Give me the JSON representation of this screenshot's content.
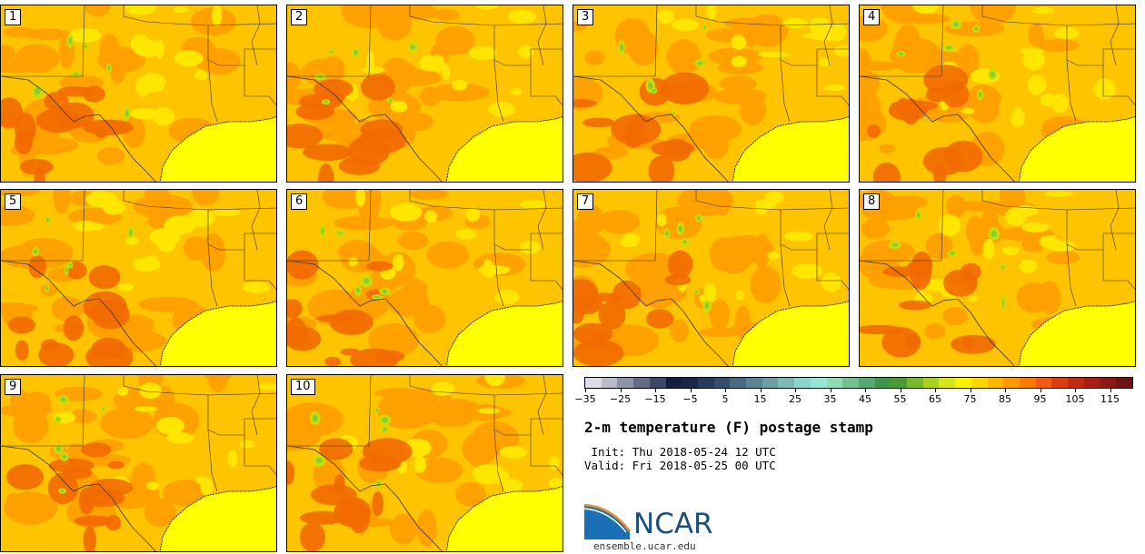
{
  "panels": [
    {
      "label": "1"
    },
    {
      "label": "2"
    },
    {
      "label": "3"
    },
    {
      "label": "4"
    },
    {
      "label": "5"
    },
    {
      "label": "6"
    },
    {
      "label": "7"
    },
    {
      "label": "8"
    },
    {
      "label": "9"
    },
    {
      "label": "10"
    }
  ],
  "colorbar": {
    "colors": [
      "#dcdde6",
      "#b9bbc9",
      "#8f93a7",
      "#666b86",
      "#3d4768",
      "#141c40",
      "#1a2647",
      "#263a5c",
      "#344f6e",
      "#456a82",
      "#5a8594",
      "#6c9ea4",
      "#7dbab2",
      "#8ad6c8",
      "#94e6d6",
      "#8fd9b3",
      "#72c290",
      "#55ab6f",
      "#3f9548",
      "#4d9a33",
      "#78b82b",
      "#a9d11f",
      "#d6e61a",
      "#fff200",
      "#ffd500",
      "#ffb700",
      "#ff9900",
      "#ff7a00",
      "#f15a10",
      "#d93d12",
      "#c22a12",
      "#a81d14",
      "#8a1712",
      "#6e1410"
    ],
    "tick_labels": [
      "−35",
      "−25",
      "−15",
      "−5",
      "5",
      "15",
      "25",
      "35",
      "45",
      "55",
      "65",
      "75",
      "85",
      "95",
      "105",
      "115"
    ]
  },
  "title": "2-m temperature (F) postage stamp",
  "init_line": " Init: Thu 2018-05-24 12 UTC",
  "valid_line": "Valid: Fri 2018-05-25 00 UTC",
  "logo_text": "NCAR",
  "site": "ensemble.ucar.edu"
}
